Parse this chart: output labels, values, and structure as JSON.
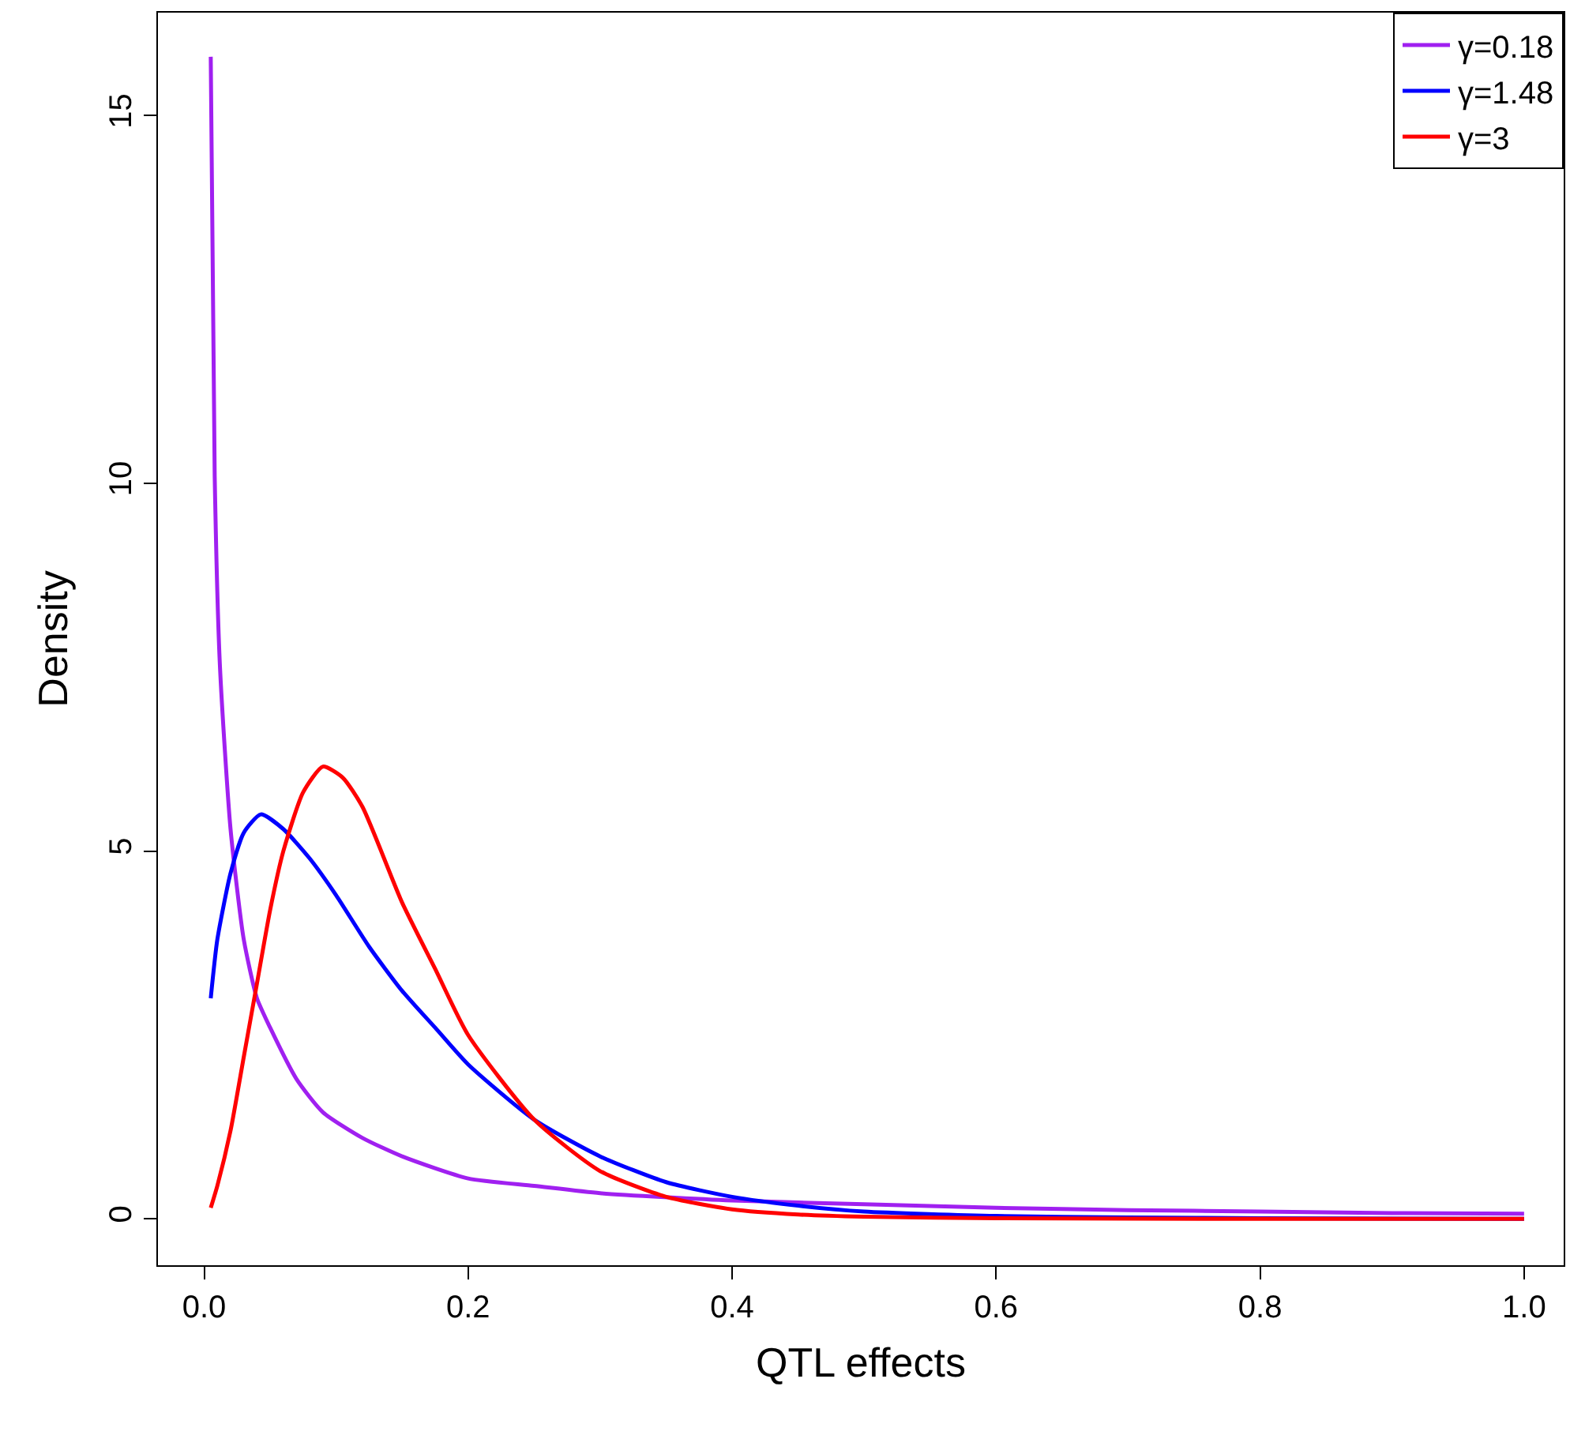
{
  "chart_data": {
    "type": "line",
    "xlabel": "QTL effects",
    "ylabel": "Density",
    "xlim": [
      -0.035,
      1.03
    ],
    "ylim": [
      -0.63,
      16.4
    ],
    "xticks": [
      {
        "value": 0,
        "label": "0.0"
      },
      0.2,
      0.4,
      0.6,
      0.8,
      {
        "value": 1,
        "label": "1.0"
      }
    ],
    "yticks": [
      0,
      5,
      10,
      15
    ],
    "legend": "top right",
    "marker": "none",
    "line_style": "solid",
    "series": [
      {
        "name": "γ=0.18",
        "color": "#a020f0",
        "x": [
          0.005,
          0.008,
          0.012,
          0.02,
          0.03,
          0.04,
          0.05,
          0.07,
          0.09,
          0.12,
          0.15,
          0.2,
          0.25,
          0.3,
          0.4,
          0.5,
          0.6,
          0.7,
          0.8,
          0.9,
          1.0
        ],
        "values": [
          15.8,
          10.1,
          7.5,
          5.3,
          3.8,
          3.0,
          2.6,
          1.9,
          1.45,
          1.1,
          0.85,
          0.55,
          0.45,
          0.35,
          0.25,
          0.2,
          0.15,
          0.12,
          0.1,
          0.08,
          0.07
        ]
      },
      {
        "name": "γ=1.48",
        "color": "#0000ff",
        "x": [
          0.005,
          0.01,
          0.02,
          0.03,
          0.043,
          0.06,
          0.08,
          0.1,
          0.125,
          0.15,
          0.175,
          0.2,
          0.25,
          0.3,
          0.35,
          0.4,
          0.45,
          0.5,
          0.6,
          0.7,
          0.8,
          1.0
        ],
        "values": [
          3.0,
          3.8,
          4.7,
          5.25,
          5.5,
          5.3,
          4.9,
          4.4,
          3.7,
          3.1,
          2.6,
          2.1,
          1.35,
          0.85,
          0.5,
          0.3,
          0.18,
          0.1,
          0.04,
          0.02,
          0.01,
          0.0
        ]
      },
      {
        "name": "γ=3",
        "color": "#ff0000",
        "x": [
          0.005,
          0.01,
          0.02,
          0.03,
          0.04,
          0.05,
          0.06,
          0.075,
          0.09,
          0.105,
          0.12,
          0.15,
          0.175,
          0.2,
          0.25,
          0.3,
          0.35,
          0.4,
          0.45,
          0.5,
          0.6,
          0.8,
          1.0
        ],
        "values": [
          0.15,
          0.45,
          1.2,
          2.2,
          3.2,
          4.2,
          5.0,
          5.8,
          6.15,
          6.0,
          5.6,
          4.3,
          3.4,
          2.5,
          1.35,
          0.65,
          0.3,
          0.13,
          0.06,
          0.03,
          0.01,
          0.0,
          0.0
        ]
      }
    ]
  }
}
